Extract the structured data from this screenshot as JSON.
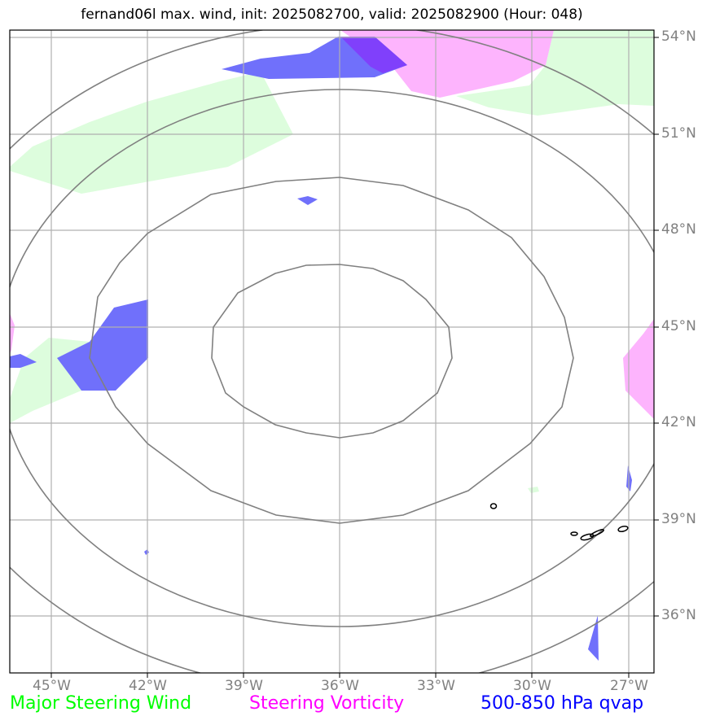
{
  "title": "fernand06l max. wind, init: 2025082700, valid: 2025082900 (Hour: 048)",
  "map": {
    "lon_labels": [
      "45°W",
      "42°W",
      "39°W",
      "36°W",
      "33°W",
      "30°W",
      "27°W"
    ],
    "lat_labels": [
      "54°N",
      "51°N",
      "48°N",
      "45°N",
      "42°N",
      "39°N",
      "36°N"
    ]
  },
  "legend": [
    {
      "label": "Major Steering Wind",
      "color": "#00ff00"
    },
    {
      "label": "Steering Vorticity",
      "color": "#ff00ff"
    },
    {
      "label": "500-850 hPa qvap",
      "color": "#0000ff"
    }
  ],
  "colors": {
    "wind_fill": "#ddfddd",
    "vorticity_fill": "#fdb4fd",
    "qvap_fill": "#7070fb",
    "overlap_fill": "#8040fb",
    "grid": "#b0b0b0",
    "rings": "#808080"
  }
}
